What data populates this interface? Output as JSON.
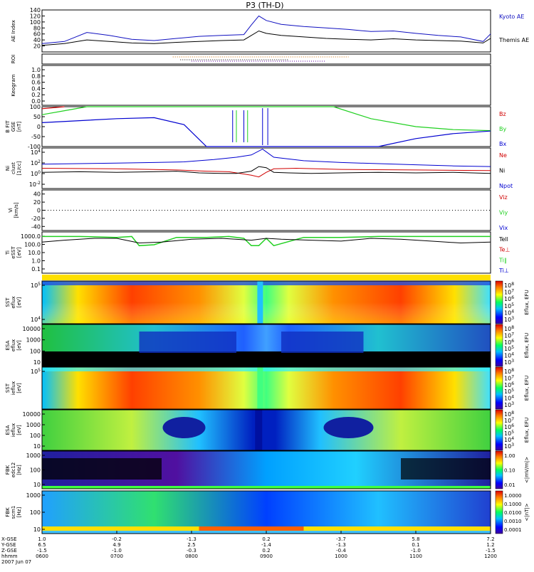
{
  "title": "P3 (TH-D)",
  "colors": {
    "kyoto": "#1010c0",
    "themis": "#000000",
    "red": "#d00000",
    "green": "#20d020",
    "blue": "#0000d0",
    "black": "#000000"
  },
  "time_axis": {
    "start_hours": 6.0,
    "end_hours": 12.0,
    "row_labels": [
      "X-GSE",
      "Y-GSE",
      "Z-GSE",
      "hhmm",
      "2007 Jun 07"
    ],
    "ticks": [
      {
        "t": 6.0,
        "x": "1.0",
        "y": "6.5",
        "z": "-1.5",
        "hhmm": "0600"
      },
      {
        "t": 7.0,
        "x": "-0.2",
        "y": "4.9",
        "z": "-1.0",
        "hhmm": "0700"
      },
      {
        "t": 8.0,
        "x": "-1.3",
        "y": "2.5",
        "z": "-0.3",
        "hhmm": "0800"
      },
      {
        "t": 9.0,
        "x": "0.2",
        "y": "-1.4",
        "z": "0.2",
        "hhmm": "0900"
      },
      {
        "t": 10.0,
        "x": "-3.7",
        "y": "-1.3",
        "z": "-0.4",
        "hhmm": "1000"
      },
      {
        "t": 11.0,
        "x": "5.8",
        "y": "0.1",
        "z": "-1.0",
        "hhmm": "1100"
      },
      {
        "t": 12.0,
        "x": "7.2",
        "y": "1.2",
        "z": "-1.5",
        "hhmm": "1200"
      }
    ]
  },
  "chart_data": [
    {
      "id": "ae",
      "type": "line",
      "ylabel": "AE Index",
      "ylim": [
        0,
        140
      ],
      "yticks": [
        "140",
        "120",
        "100",
        "80",
        "60",
        "40",
        "20"
      ],
      "legend": [
        "Kyoto AE",
        "Themis AE"
      ],
      "series": [
        {
          "name": "Kyoto AE",
          "x": [
            6.0,
            6.3,
            6.6,
            6.9,
            7.2,
            7.5,
            7.8,
            8.1,
            8.4,
            8.7,
            8.8,
            8.9,
            9.0,
            9.2,
            9.5,
            9.8,
            10.1,
            10.4,
            10.7,
            11.0,
            11.3,
            11.6,
            11.9,
            12.0
          ],
          "y": [
            28,
            35,
            65,
            55,
            42,
            38,
            45,
            52,
            55,
            58,
            90,
            120,
            105,
            92,
            85,
            80,
            75,
            68,
            70,
            62,
            55,
            50,
            35,
            60
          ]
        },
        {
          "name": "Themis AE",
          "x": [
            6.0,
            6.3,
            6.6,
            6.9,
            7.2,
            7.5,
            7.8,
            8.1,
            8.4,
            8.7,
            8.8,
            8.9,
            9.0,
            9.2,
            9.5,
            9.8,
            10.1,
            10.4,
            10.7,
            11.0,
            11.3,
            11.6,
            11.9,
            12.0
          ],
          "y": [
            22,
            28,
            40,
            35,
            30,
            28,
            32,
            35,
            38,
            40,
            55,
            70,
            62,
            55,
            50,
            45,
            42,
            40,
            44,
            40,
            38,
            36,
            30,
            45
          ]
        }
      ]
    },
    {
      "id": "roi",
      "type": "line",
      "ylabel": "ROI",
      "note": "dotted bars"
    },
    {
      "id": "keogram",
      "type": "line",
      "ylabel": "Keogram",
      "ylim": [
        0,
        1
      ],
      "yticks": [
        "1.0",
        "0.8",
        "0.6",
        "0.4",
        "0.2",
        "0.0"
      ]
    },
    {
      "id": "bfit",
      "type": "line",
      "ylabel": "B FIT\nGSE\n[nT]",
      "ylim": [
        -100,
        100
      ],
      "yticks": [
        "100",
        "50",
        "0",
        "-50",
        "-100"
      ],
      "legend": [
        "Bz",
        "By",
        "Bx"
      ],
      "series": [
        {
          "name": "Bz",
          "x": [
            6.0,
            6.3
          ],
          "y": [
            90,
            100
          ]
        },
        {
          "name": "By",
          "x": [
            6.0,
            6.3,
            6.6,
            9.9,
            10.4,
            11.0,
            11.5,
            12.0
          ],
          "y": [
            60,
            80,
            100,
            100,
            40,
            0,
            -15,
            -20
          ]
        },
        {
          "name": "Bx",
          "x": [
            6.0,
            6.5,
            7.0,
            7.5,
            7.9,
            8.2,
            10.5,
            11.0,
            11.5,
            12.0
          ],
          "y": [
            20,
            30,
            40,
            45,
            10,
            -100,
            -100,
            -60,
            -35,
            -22
          ]
        }
      ]
    },
    {
      "id": "ni",
      "type": "line",
      "ylabel": "Ni\nclust\n[1/cc]",
      "ylim": [
        -2,
        5
      ],
      "yticks": [
        "10^4",
        "10^2",
        "10^0",
        "10^-2"
      ],
      "legend": [
        "Ne",
        "Ni",
        "Npot"
      ]
    },
    {
      "id": "vi",
      "type": "line",
      "ylabel": "Vi\n[km/s]",
      "ylim": [
        -50,
        50
      ],
      "yticks": [
        "40",
        "20",
        "0",
        "-20",
        "-40"
      ],
      "legend": [
        "Viz",
        "Viy",
        "Vix"
      ]
    },
    {
      "id": "ti",
      "type": "line",
      "ylabel": "Ti\neSST\n[eV]",
      "ylim": [
        -1,
        3.5
      ],
      "yticks": [
        "1000.0",
        "100.0",
        "10.0",
        "1.0",
        "0.1"
      ],
      "legend": [
        "Tell",
        "Te⊥",
        "Ti∥",
        "Ti⊥"
      ]
    },
    {
      "id": "sst_e",
      "type": "heatmap",
      "ylabel": "SST\neflux\n[eV]",
      "yticks": [
        "10^5",
        "10^4"
      ],
      "cbar_ticks": [
        "10^8",
        "10^7",
        "10^6",
        "10^5",
        "10^4",
        "10^3"
      ],
      "cbar_label": "Eflux, EFU"
    },
    {
      "id": "esa_e",
      "type": "heatmap",
      "ylabel": "ESA\neflux\n[eV]",
      "yticks": [
        "10000",
        "1000",
        "100",
        "10"
      ],
      "cbar_ticks": [
        "10^8",
        "10^7",
        "10^6",
        "10^5",
        "10^4",
        "10^3"
      ],
      "cbar_label": "Eflux, EFU"
    },
    {
      "id": "sst_i",
      "type": "heatmap",
      "ylabel": "SST\nieflux\n[eV]",
      "yticks": [
        "10^5"
      ],
      "cbar_ticks": [
        "10^8",
        "10^7",
        "10^6",
        "10^5",
        "10^4",
        "10^3"
      ],
      "cbar_label": "Eflux, EFU"
    },
    {
      "id": "esa_i",
      "type": "heatmap",
      "ylabel": "ESA\nieflux\n[eV]",
      "yticks": [
        "10000",
        "1000",
        "100",
        "10"
      ],
      "cbar_ticks": [
        "10^8",
        "10^7",
        "10^6",
        "10^5",
        "10^4",
        "10^3"
      ],
      "cbar_label": "Eflux, EFU"
    },
    {
      "id": "fbk_e",
      "type": "heatmap",
      "ylabel": "FBK\nedc12\n[Hz]",
      "yticks": [
        "1000",
        "100",
        "10"
      ],
      "cbar_ticks": [
        "1.00",
        "0.10",
        "0.01"
      ],
      "cbar_label": "<|mV/m|>"
    },
    {
      "id": "fbk_b",
      "type": "heatmap",
      "ylabel": "FBK\nscm1\n[Hz]",
      "yticks": [
        "1000",
        "100",
        "10"
      ],
      "cbar_ticks": [
        "1.0000",
        "0.1000",
        "0.0100",
        "0.0010",
        "0.0001"
      ],
      "cbar_label": "<|nT|>"
    }
  ]
}
